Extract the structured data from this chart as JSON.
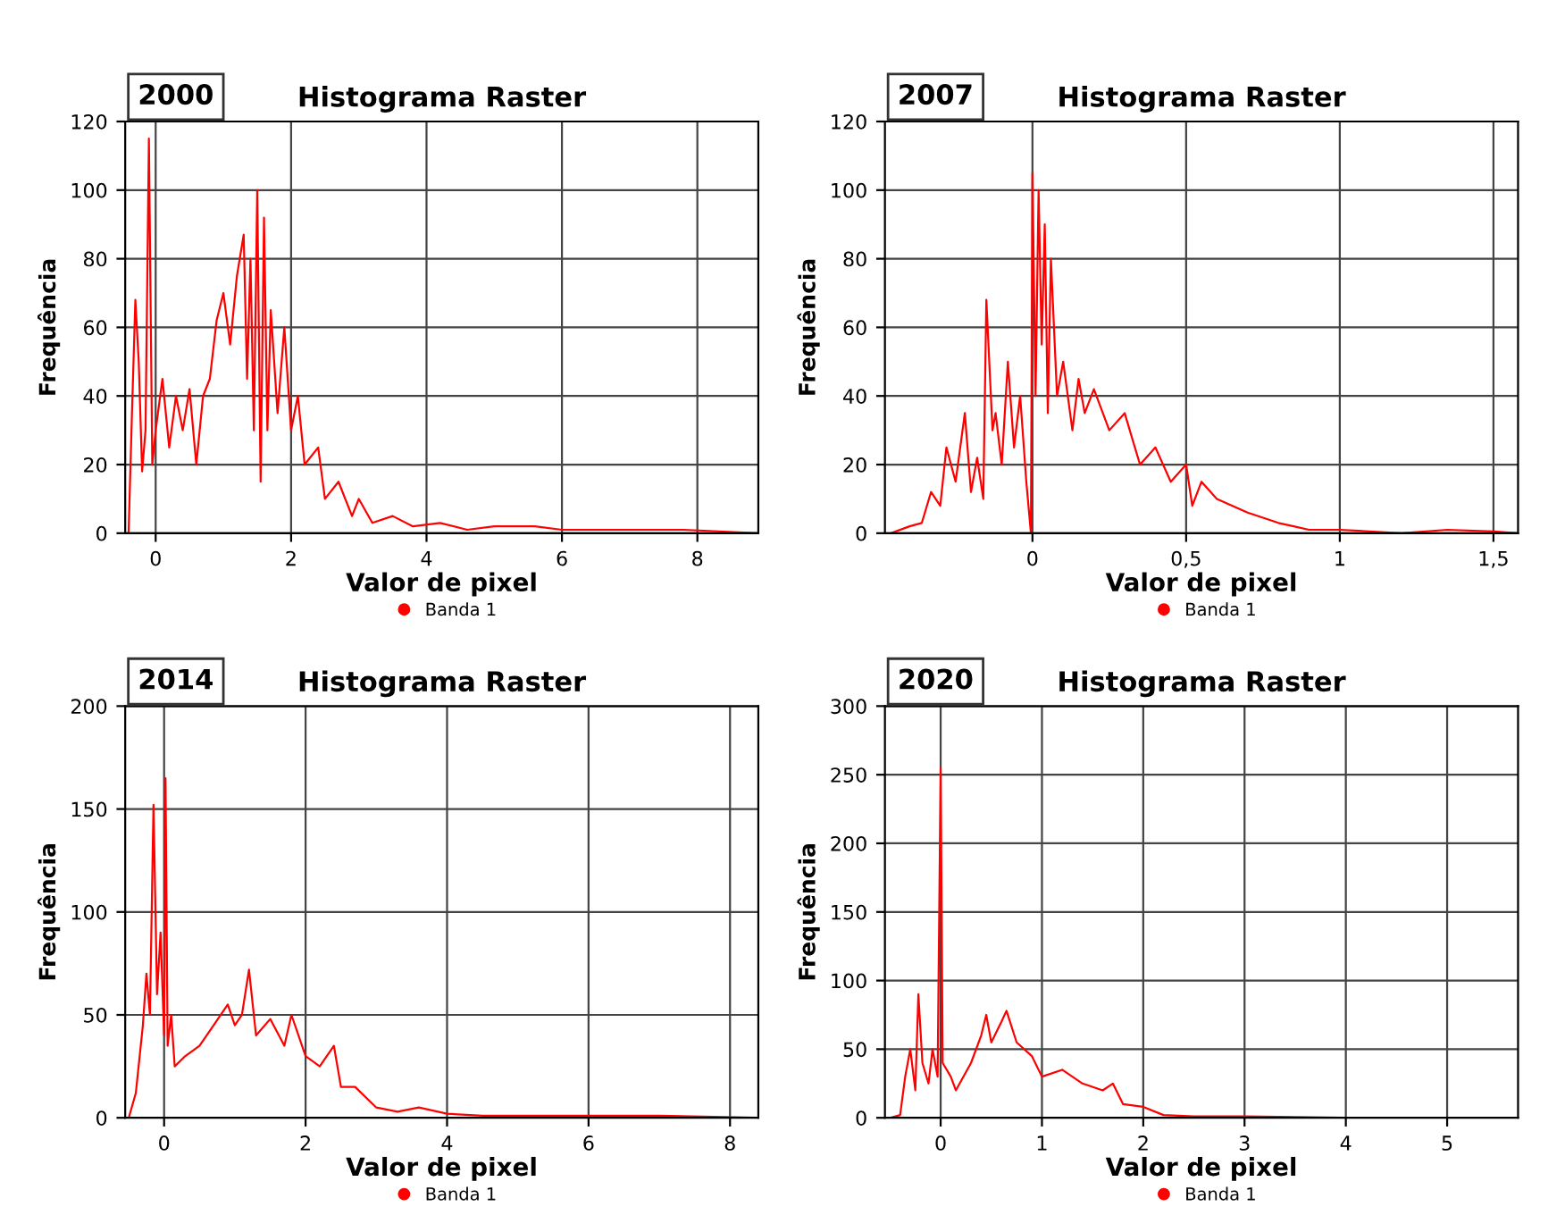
{
  "chart_data": [
    {
      "type": "line",
      "title": "Histograma Raster",
      "xlabel": "Valor de pixel",
      "ylabel": "Frequência",
      "annotations": [
        "2000"
      ],
      "grid": true,
      "legend": "bottom",
      "xlim": [
        -0.45,
        8.9
      ],
      "xticks": [
        0,
        2,
        4,
        6,
        8
      ],
      "ylim": [
        0,
        120
      ],
      "yticks": [
        0,
        20,
        40,
        60,
        80,
        100,
        120
      ],
      "series": [
        {
          "name": "Banda 1",
          "color": "#ff0000",
          "x": [
            -0.4,
            -0.35,
            -0.3,
            -0.25,
            -0.2,
            -0.15,
            -0.1,
            -0.05,
            0,
            0.1,
            0.2,
            0.3,
            0.4,
            0.5,
            0.6,
            0.7,
            0.8,
            0.9,
            1.0,
            1.1,
            1.2,
            1.3,
            1.35,
            1.4,
            1.45,
            1.5,
            1.55,
            1.6,
            1.65,
            1.7,
            1.8,
            1.9,
            2.0,
            2.1,
            2.2,
            2.4,
            2.5,
            2.7,
            2.9,
            3.0,
            3.2,
            3.5,
            3.8,
            4.2,
            4.6,
            5.0,
            5.6,
            6.0,
            7.0,
            7.8,
            8.9
          ],
          "values": [
            0,
            35,
            68,
            50,
            18,
            30,
            115,
            20,
            30,
            45,
            25,
            40,
            30,
            42,
            20,
            40,
            45,
            62,
            70,
            55,
            75,
            87,
            45,
            80,
            30,
            100,
            15,
            92,
            30,
            65,
            35,
            60,
            30,
            40,
            20,
            25,
            10,
            15,
            5,
            10,
            3,
            5,
            2,
            3,
            1,
            2,
            2,
            1,
            1,
            1,
            0
          ]
        }
      ]
    },
    {
      "type": "line",
      "title": "Histograma Raster",
      "xlabel": "Valor de pixel",
      "ylabel": "Frequência",
      "annotations": [
        "2007"
      ],
      "grid": true,
      "legend": "bottom",
      "xlim": [
        -0.48,
        1.58
      ],
      "xticks": [
        0,
        {
          "value": 0.5,
          "label": "0,5"
        },
        1,
        {
          "value": 1.5,
          "label": "1,5"
        }
      ],
      "ylim": [
        0,
        120
      ],
      "yticks": [
        0,
        20,
        40,
        60,
        80,
        100,
        120
      ],
      "series": [
        {
          "name": "Banda 1",
          "color": "#ff0000",
          "x": [
            -0.46,
            -0.4,
            -0.36,
            -0.33,
            -0.3,
            -0.28,
            -0.25,
            -0.22,
            -0.2,
            -0.18,
            -0.16,
            -0.15,
            -0.13,
            -0.12,
            -0.1,
            -0.08,
            -0.06,
            -0.04,
            -0.02,
            -0.005,
            0,
            0.01,
            0.02,
            0.03,
            0.04,
            0.05,
            0.06,
            0.08,
            0.1,
            0.13,
            0.15,
            0.17,
            0.2,
            0.25,
            0.3,
            0.35,
            0.4,
            0.45,
            0.5,
            0.52,
            0.55,
            0.6,
            0.7,
            0.8,
            0.85,
            0.9,
            1.0,
            1.2,
            1.35,
            1.5,
            1.58
          ],
          "values": [
            0,
            2,
            3,
            12,
            8,
            25,
            15,
            35,
            12,
            22,
            10,
            68,
            30,
            35,
            20,
            50,
            25,
            40,
            15,
            0,
            105,
            40,
            100,
            55,
            90,
            35,
            80,
            40,
            50,
            30,
            45,
            35,
            42,
            30,
            35,
            20,
            25,
            15,
            20,
            8,
            15,
            10,
            6,
            3,
            2,
            1,
            1,
            0,
            1,
            0.5,
            0
          ]
        }
      ]
    },
    {
      "type": "line",
      "title": "Histograma Raster",
      "xlabel": "Valor de pixel",
      "ylabel": "Frequência",
      "annotations": [
        "2014"
      ],
      "grid": true,
      "legend": "bottom",
      "xlim": [
        -0.55,
        8.4
      ],
      "xticks": [
        0,
        2,
        4,
        6,
        8
      ],
      "ylim": [
        0,
        200
      ],
      "yticks": [
        0,
        50,
        100,
        150,
        200
      ],
      "series": [
        {
          "name": "Banda 1",
          "color": "#ff0000",
          "x": [
            -0.5,
            -0.4,
            -0.3,
            -0.25,
            -0.2,
            -0.15,
            -0.1,
            -0.05,
            0,
            0.02,
            0.05,
            0.1,
            0.15,
            0.3,
            0.5,
            0.7,
            0.9,
            1.0,
            1.1,
            1.2,
            1.3,
            1.5,
            1.7,
            1.8,
            2.0,
            2.2,
            2.4,
            2.5,
            2.7,
            3.0,
            3.3,
            3.6,
            4.0,
            4.5,
            5.0,
            6.0,
            7.0,
            8.4
          ],
          "values": [
            0,
            12,
            45,
            70,
            50,
            152,
            60,
            90,
            40,
            165,
            35,
            50,
            25,
            30,
            35,
            45,
            55,
            45,
            50,
            72,
            40,
            48,
            35,
            50,
            30,
            25,
            35,
            15,
            15,
            5,
            3,
            5,
            2,
            1,
            1,
            1,
            1,
            0
          ]
        }
      ]
    },
    {
      "type": "line",
      "title": "Histograma Raster",
      "xlabel": "Valor de pixel",
      "ylabel": "Frequência",
      "annotations": [
        "2020"
      ],
      "grid": true,
      "legend": "bottom",
      "xlim": [
        -0.55,
        5.7
      ],
      "xticks": [
        0,
        1,
        2,
        3,
        4,
        5
      ],
      "ylim": [
        0,
        300
      ],
      "yticks": [
        0,
        50,
        100,
        150,
        200,
        250,
        300
      ],
      "series": [
        {
          "name": "Banda 1",
          "color": "#ff0000",
          "x": [
            -0.5,
            -0.4,
            -0.35,
            -0.3,
            -0.25,
            -0.22,
            -0.18,
            -0.12,
            -0.08,
            -0.03,
            0,
            0.02,
            0.1,
            0.15,
            0.3,
            0.4,
            0.45,
            0.5,
            0.6,
            0.65,
            0.75,
            0.9,
            1.0,
            1.2,
            1.4,
            1.6,
            1.7,
            1.8,
            2.0,
            2.2,
            2.5,
            3.0,
            4.0,
            5.7
          ],
          "values": [
            0,
            2,
            30,
            50,
            20,
            90,
            40,
            25,
            50,
            30,
            255,
            40,
            30,
            20,
            40,
            60,
            75,
            55,
            70,
            78,
            55,
            45,
            30,
            35,
            25,
            20,
            25,
            10,
            8,
            2,
            1,
            1,
            0,
            0
          ]
        }
      ]
    }
  ]
}
